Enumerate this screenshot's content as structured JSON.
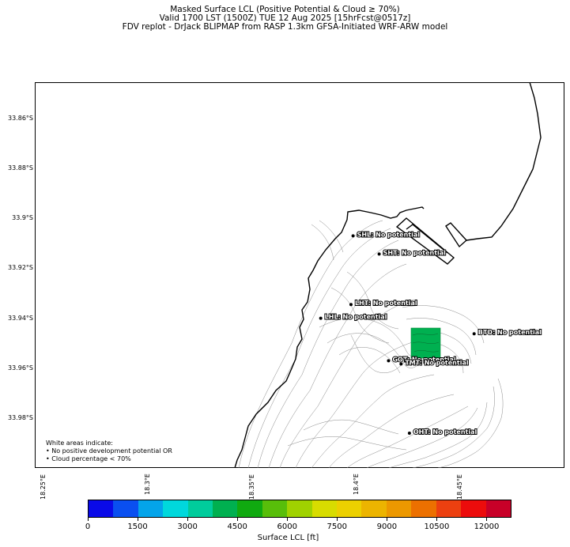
{
  "title_lines": [
    "Masked Surface LCL (Positive Potential & Cloud ≥ 70%)",
    "Valid 1700 LST (1500Z) TUE 12 Aug 2025 [15hrFcst@0517z]",
    "FDV replot - DrJack BLIPMAP from RASP 1.3km GFSA-Initiated WRF-ARW model"
  ],
  "y_axis_labels": [
    "33.86°S",
    "33.88°S",
    "33.9°S",
    "33.92°S",
    "33.94°S",
    "33.96°S",
    "33.98°S"
  ],
  "x_axis_labels": [
    "18.25°E",
    "18.3°E",
    "18.35°E",
    "18.4°E",
    "18.45°E"
  ],
  "sites": [
    {
      "code": "SHL",
      "label": "SHL: No potential",
      "lon": 18.392,
      "lat": -33.9075
    },
    {
      "code": "SHT",
      "label": "SHT: No potential",
      "lon": 18.4045,
      "lat": -33.9148
    },
    {
      "code": "LHT",
      "label": "LHT: No potential",
      "lon": 18.391,
      "lat": -33.935
    },
    {
      "code": "LHL",
      "label": "LHL: No potential",
      "lon": 18.3765,
      "lat": -33.9405
    },
    {
      "code": "BTO",
      "label": "BTO: No potential",
      "lon": 18.45,
      "lat": -33.9467
    },
    {
      "code": "GOT",
      "label": "GOT: No potential",
      "lon": 18.409,
      "lat": -33.9575
    },
    {
      "code": "TMT",
      "label": "TMT: No potential",
      "lon": 18.415,
      "lat": -33.9588
    },
    {
      "code": "OHT",
      "label": "OHT: No potential",
      "lon": 18.419,
      "lat": -33.9865
    }
  ],
  "lcl_patch": {
    "value_ft": 4500,
    "color": "#00b050"
  },
  "note_lines": [
    "White areas indicate:",
    "• No positive development potential OR",
    "• Cloud percentage < 70%"
  ],
  "colorbar": {
    "colors": [
      "#0a0ae8",
      "#0a4ff0",
      "#04a4ea",
      "#00d8dc",
      "#00cc9c",
      "#00b050",
      "#10aa10",
      "#58be0a",
      "#a0d200",
      "#d8dc00",
      "#ecd000",
      "#ecb400",
      "#ec9800",
      "#ec7000",
      "#ec4010",
      "#ec0c0c",
      "#c80028"
    ],
    "ticks": [
      "0",
      "1500",
      "3000",
      "4500",
      "6000",
      "7500",
      "9000",
      "10500",
      "12000"
    ],
    "label": "Surface LCL [ft]"
  }
}
